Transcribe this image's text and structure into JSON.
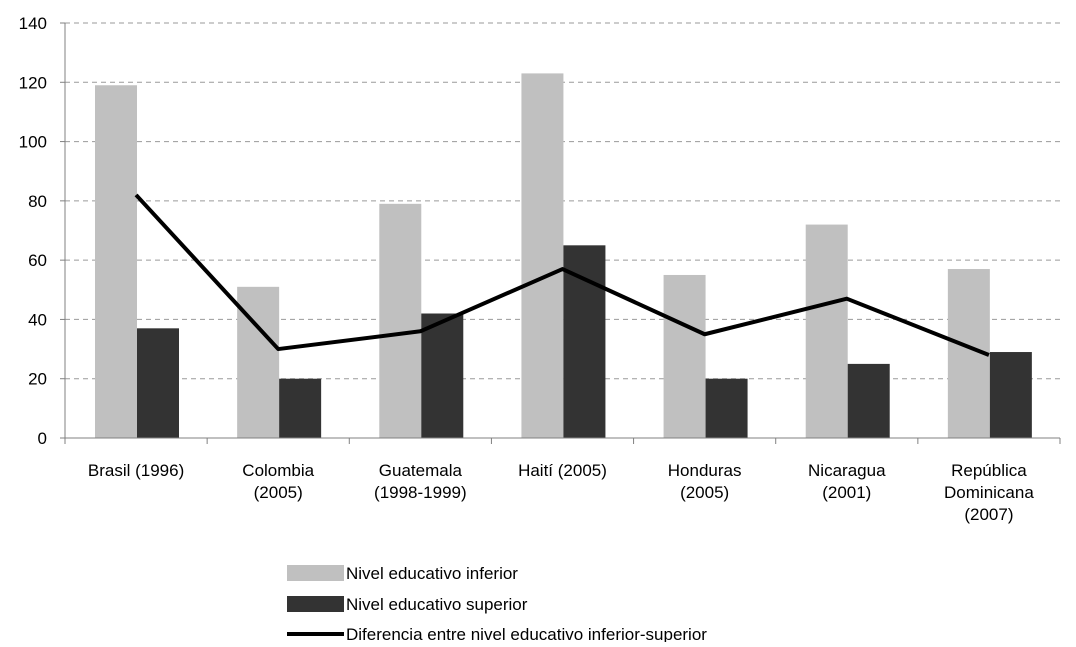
{
  "chart_data": {
    "type": "bar",
    "categories": [
      [
        "Brasil (1996)"
      ],
      [
        "Colombia",
        "(2005)"
      ],
      [
        "Guatemala",
        "(1998-1999)"
      ],
      [
        "Haití (2005)"
      ],
      [
        "Honduras",
        "(2005)"
      ],
      [
        "Nicaragua",
        "(2001)"
      ],
      [
        "República",
        "Dominicana",
        "(2007)"
      ]
    ],
    "series": [
      {
        "name": "Nivel educativo inferior",
        "kind": "bar",
        "color": "#c0c0c0",
        "values": [
          119,
          51,
          79,
          123,
          55,
          72,
          57
        ]
      },
      {
        "name": "Nivel educativo superior",
        "kind": "bar",
        "color": "#333333",
        "values": [
          37,
          20,
          42,
          65,
          20,
          25,
          29
        ]
      },
      {
        "name": "Diferencia entre nivel educativo inferior-superior",
        "kind": "line",
        "color": "#000000",
        "values": [
          82,
          30,
          36,
          57,
          35,
          47,
          28
        ]
      }
    ],
    "yaxis": {
      "min": 0,
      "max": 140,
      "ticks": [
        0,
        20,
        40,
        60,
        80,
        100,
        120,
        140
      ]
    },
    "grid": "horizontal dashed",
    "legend_position": "bottom"
  }
}
